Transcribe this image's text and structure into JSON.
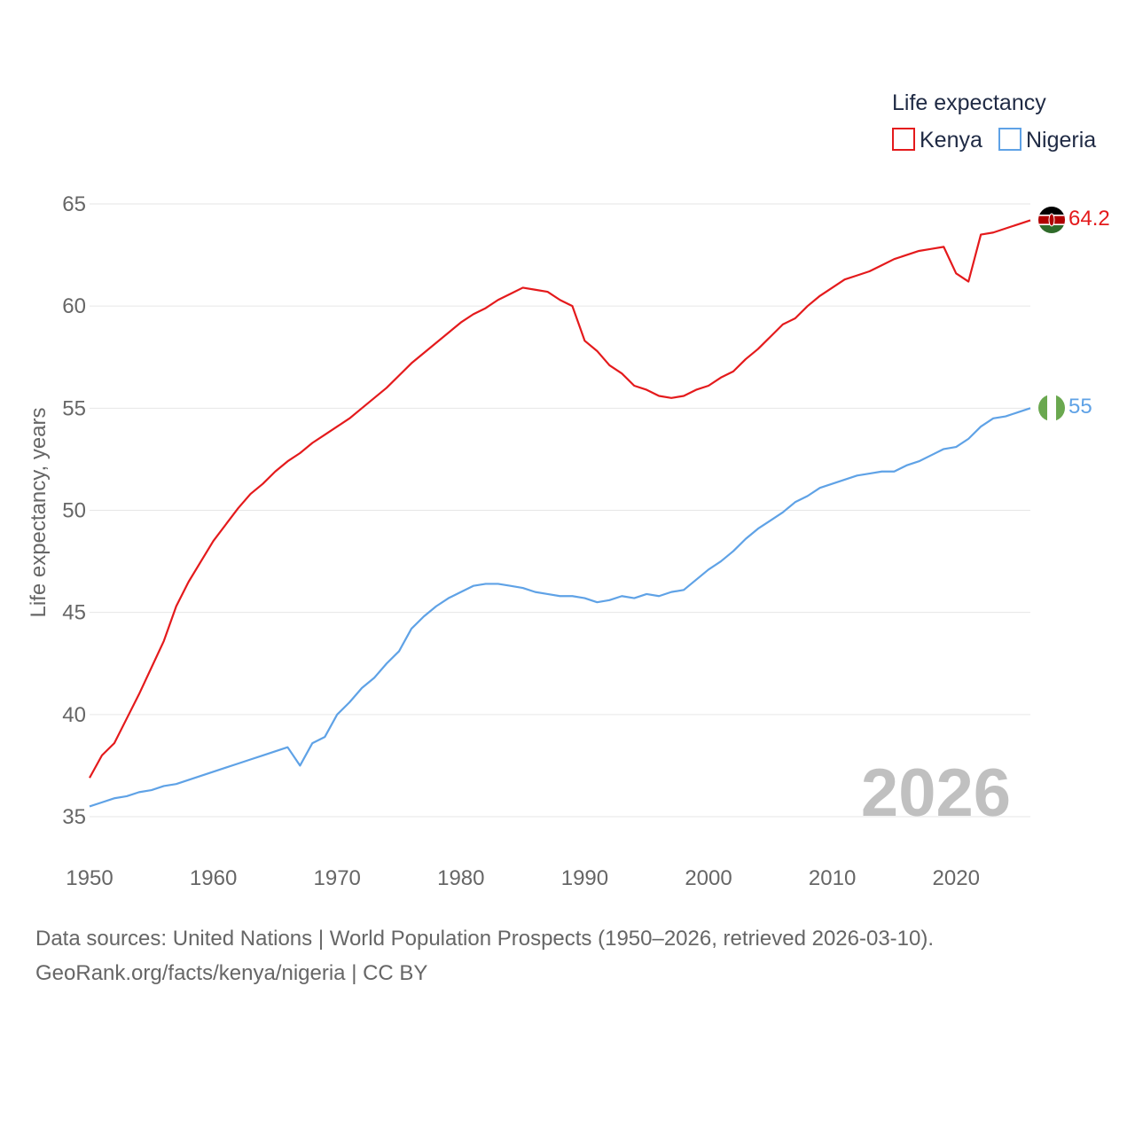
{
  "colors": {
    "kenya": "#e41a1c",
    "nigeria": "#5fa2e6",
    "grid": "#e6e6e6",
    "text": "#666666"
  },
  "legend": {
    "title": "Life expectancy",
    "items": [
      {
        "name": "Kenya",
        "color": "#e41a1c"
      },
      {
        "name": "Nigeria",
        "color": "#5fa2e6"
      }
    ]
  },
  "year_watermark": "2026",
  "footer": {
    "line1": "Data sources: United Nations | World Population Prospects (1950–2026, retrieved 2026-03-10).",
    "line2": "GeoRank.org/facts/kenya/nigeria | CC BY"
  },
  "chart_data": {
    "type": "line",
    "title": "Life expectancy",
    "xlabel": "",
    "ylabel": "Life expectancy, years",
    "xlim": [
      1950,
      2026
    ],
    "ylim": [
      35,
      65
    ],
    "xticks": [
      1950,
      1960,
      1970,
      1980,
      1990,
      2000,
      2010,
      2020
    ],
    "yticks": [
      35,
      40,
      45,
      50,
      55,
      60,
      65
    ],
    "grid": true,
    "legend_position": "top-right",
    "series": [
      {
        "name": "Kenya",
        "color": "#e41a1c",
        "end_label": "64.2",
        "x": [
          1950,
          1951,
          1952,
          1953,
          1954,
          1955,
          1956,
          1957,
          1958,
          1959,
          1960,
          1961,
          1962,
          1963,
          1964,
          1965,
          1966,
          1967,
          1968,
          1969,
          1970,
          1971,
          1972,
          1973,
          1974,
          1975,
          1976,
          1977,
          1978,
          1979,
          1980,
          1981,
          1982,
          1983,
          1984,
          1985,
          1986,
          1987,
          1988,
          1989,
          1990,
          1991,
          1992,
          1993,
          1994,
          1995,
          1996,
          1997,
          1998,
          1999,
          2000,
          2001,
          2002,
          2003,
          2004,
          2005,
          2006,
          2007,
          2008,
          2009,
          2010,
          2011,
          2012,
          2013,
          2014,
          2015,
          2016,
          2017,
          2018,
          2019,
          2020,
          2021,
          2022,
          2023,
          2024,
          2025,
          2026
        ],
        "values": [
          36.9,
          38.0,
          38.6,
          39.8,
          41.0,
          42.3,
          43.6,
          45.3,
          46.5,
          47.5,
          48.5,
          49.3,
          50.1,
          50.8,
          51.3,
          51.9,
          52.4,
          52.8,
          53.3,
          53.7,
          54.1,
          54.5,
          55.0,
          55.5,
          56.0,
          56.6,
          57.2,
          57.7,
          58.2,
          58.7,
          59.2,
          59.6,
          59.9,
          60.3,
          60.6,
          60.9,
          60.8,
          60.7,
          60.3,
          60.0,
          58.3,
          57.8,
          57.1,
          56.7,
          56.1,
          55.9,
          55.6,
          55.5,
          55.6,
          55.9,
          56.1,
          56.5,
          56.8,
          57.4,
          57.9,
          58.5,
          59.1,
          59.4,
          60.0,
          60.5,
          60.9,
          61.3,
          61.5,
          61.7,
          62.0,
          62.3,
          62.5,
          62.7,
          62.8,
          62.9,
          61.6,
          61.2,
          63.5,
          63.6,
          63.8,
          64.0,
          64.2
        ]
      },
      {
        "name": "Nigeria",
        "color": "#5fa2e6",
        "end_label": "55",
        "x": [
          1950,
          1951,
          1952,
          1953,
          1954,
          1955,
          1956,
          1957,
          1958,
          1959,
          1960,
          1961,
          1962,
          1963,
          1964,
          1965,
          1966,
          1967,
          1968,
          1969,
          1970,
          1971,
          1972,
          1973,
          1974,
          1975,
          1976,
          1977,
          1978,
          1979,
          1980,
          1981,
          1982,
          1983,
          1984,
          1985,
          1986,
          1987,
          1988,
          1989,
          1990,
          1991,
          1992,
          1993,
          1994,
          1995,
          1996,
          1997,
          1998,
          1999,
          2000,
          2001,
          2002,
          2003,
          2004,
          2005,
          2006,
          2007,
          2008,
          2009,
          2010,
          2011,
          2012,
          2013,
          2014,
          2015,
          2016,
          2017,
          2018,
          2019,
          2020,
          2021,
          2022,
          2023,
          2024,
          2025,
          2026
        ],
        "values": [
          35.5,
          35.7,
          35.9,
          36.0,
          36.2,
          36.3,
          36.5,
          36.6,
          36.8,
          37.0,
          37.2,
          37.4,
          37.6,
          37.8,
          38.0,
          38.2,
          38.4,
          37.5,
          38.6,
          38.9,
          40.0,
          40.6,
          41.3,
          41.8,
          42.5,
          43.1,
          44.2,
          44.8,
          45.3,
          45.7,
          46.0,
          46.3,
          46.4,
          46.4,
          46.3,
          46.2,
          46.0,
          45.9,
          45.8,
          45.8,
          45.7,
          45.5,
          45.6,
          45.8,
          45.7,
          45.9,
          45.8,
          46.0,
          46.1,
          46.6,
          47.1,
          47.5,
          48.0,
          48.6,
          49.1,
          49.5,
          49.9,
          50.4,
          50.7,
          51.1,
          51.3,
          51.5,
          51.7,
          51.8,
          51.9,
          51.9,
          52.2,
          52.4,
          52.7,
          53.0,
          53.1,
          53.5,
          54.1,
          54.5,
          54.6,
          54.8,
          55.0
        ]
      }
    ]
  }
}
